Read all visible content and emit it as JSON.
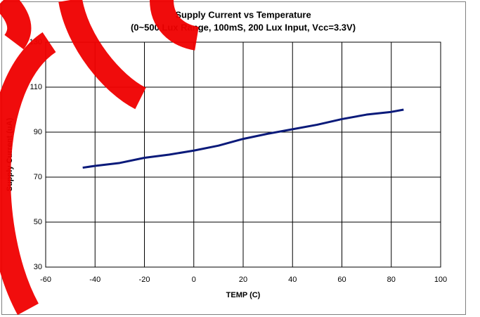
{
  "chart_data": {
    "type": "line",
    "title": "Supply Current vs Temperature",
    "subtitle": "(0~500 Lux Range, 100mS, 200 Lux Input, Vcc=3.3V)",
    "x_label": "TEMP (C)",
    "y_label": "Supply Current (uA)",
    "x": [
      -45,
      -40,
      -30,
      -20,
      -10,
      0,
      10,
      20,
      30,
      40,
      50,
      60,
      70,
      80,
      85
    ],
    "series": [
      {
        "color": "#0a1a7a",
        "values": [
          74.2,
          75,
          76.3,
          78.6,
          80,
          81.8,
          84,
          87,
          89.3,
          91.3,
          93.3,
          95.8,
          97.8,
          99,
          100
        ]
      }
    ],
    "xlim": [
      -60,
      100
    ],
    "xticks": [
      -60,
      -40,
      -20,
      0,
      20,
      40,
      60,
      80,
      100
    ],
    "ylim": [
      30,
      130
    ],
    "yticks": [
      30,
      50,
      70,
      90,
      110,
      130
    ],
    "grid": true
  }
}
